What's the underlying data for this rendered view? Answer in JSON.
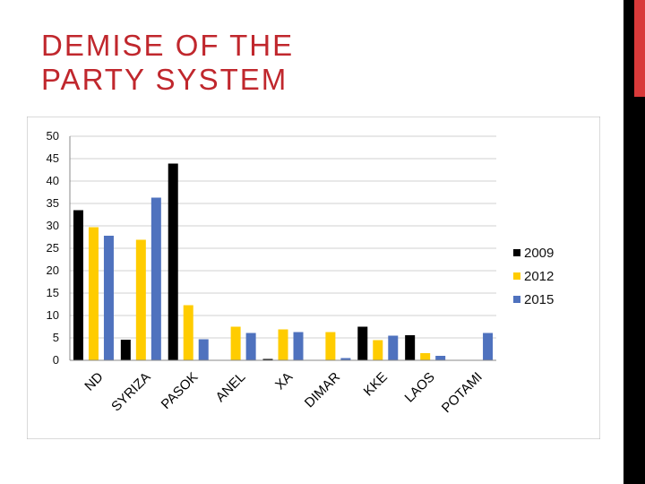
{
  "slide": {
    "title_line1": "DEMISE OF THE",
    "title_line2": "PARTY SYSTEM"
  },
  "chart_data": {
    "type": "bar",
    "categories": [
      "ND",
      "SYRIZA",
      "PASOK",
      "ANEL",
      "XA",
      "DIMAR",
      "KKE",
      "LAOS",
      "POTAMI"
    ],
    "series": [
      {
        "name": "2009",
        "color": "#000000",
        "values": [
          33.5,
          4.6,
          43.9,
          0,
          0.3,
          0,
          7.5,
          5.6,
          0
        ]
      },
      {
        "name": "2012",
        "color": "#ffcc00",
        "values": [
          29.7,
          26.9,
          12.3,
          7.5,
          6.9,
          6.3,
          4.5,
          1.6,
          0
        ]
      },
      {
        "name": "2015",
        "color": "#4f72be",
        "values": [
          27.8,
          36.3,
          4.7,
          6.1,
          6.3,
          0.5,
          5.5,
          1.0,
          6.1
        ]
      }
    ],
    "ylim": [
      0,
      50
    ],
    "yticks": [
      "0",
      "5",
      "10",
      "15",
      "20",
      "25",
      "30",
      "35",
      "40",
      "45",
      "50"
    ],
    "grid": true,
    "legend_position": "right"
  }
}
